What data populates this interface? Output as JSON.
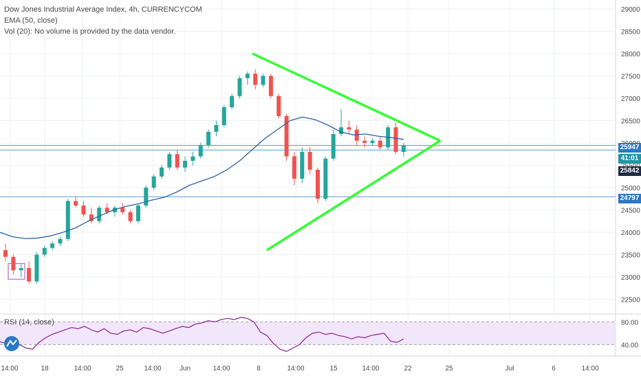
{
  "legend": {
    "symbol": "Dow Jones Industrial Average Index, 4h, CURRENCYCOM",
    "ema": "EMA (50, close)",
    "volume": "Vol (20): No volume is provided by the data vendor.",
    "rsi": "RSI (14, close)"
  },
  "colors": {
    "up": "#26a69a",
    "down": "#ef5350",
    "ema": "#2962a8",
    "trendline": "#33ff33",
    "hline": "#5b9bd5",
    "rsi_line": "#8e1f8e",
    "rsi_band": "#f2e6fb",
    "tag_blue": "#2b78c5",
    "tag_teal": "#2196a3",
    "tag_dark": "#1f2a44"
  },
  "price_tags": {
    "upper": "25947",
    "timer": "41:01",
    "middle": "25842",
    "lower": "24797"
  },
  "chart_data": [
    {
      "type": "candlestick",
      "title": "Dow Jones Industrial Average Index, 4h, CURRENCYCOM",
      "y_ticks": [
        "29000",
        "28500",
        "28000",
        "27500",
        "27000",
        "26500",
        "26000",
        "25500",
        "25000",
        "24500",
        "24000",
        "23500",
        "23000",
        "22500"
      ],
      "x_ticks": [
        "14:00",
        "18",
        "14:00",
        "25",
        "14:00",
        "Jun",
        "14:00",
        "8",
        "14:00",
        "15",
        "14:00",
        "22",
        "25",
        "Jul",
        "6",
        "14:00"
      ],
      "ylim": [
        22200,
        29200
      ],
      "grid": true,
      "series": [
        {
          "name": "EMA (50, close)",
          "type": "line",
          "values": [
            24000,
            23900,
            23860,
            23870,
            23920,
            24000,
            24100,
            24250,
            24380,
            24500,
            24580,
            24640,
            24720,
            24780,
            24900,
            25050,
            25150,
            25250,
            25400,
            25600,
            25850,
            26100,
            26300,
            26500,
            26580,
            26520,
            26400,
            26250,
            26180,
            26200,
            26150,
            26120,
            26080
          ]
        },
        {
          "name": "ohlc",
          "type": "candles",
          "values": [
            [
              23600,
              23750,
              23350,
              23450
            ],
            [
              23450,
              23500,
              23050,
              23150
            ],
            [
              23150,
              23300,
              23000,
              23200
            ],
            [
              23200,
              23350,
              22850,
              22900
            ],
            [
              22900,
              23550,
              22850,
              23500
            ],
            [
              23500,
              23700,
              23450,
              23650
            ],
            [
              23650,
              23800,
              23600,
              23750
            ],
            [
              23750,
              23900,
              23700,
              23850
            ],
            [
              23850,
              24750,
              23800,
              24700
            ],
            [
              24700,
              24800,
              24550,
              24600
            ],
            [
              24600,
              24700,
              24350,
              24400
            ],
            [
              24400,
              24550,
              24200,
              24250
            ],
            [
              24250,
              24600,
              24200,
              24550
            ],
            [
              24550,
              24650,
              24400,
              24450
            ],
            [
              24450,
              24600,
              24350,
              24550
            ],
            [
              24550,
              24650,
              24400,
              24450
            ],
            [
              24450,
              24500,
              24200,
              24250
            ],
            [
              24250,
              24650,
              24200,
              24600
            ],
            [
              24600,
              25050,
              24550,
              25000
            ],
            [
              25000,
              25300,
              24950,
              25250
            ],
            [
              25250,
              25500,
              25200,
              25450
            ],
            [
              25450,
              25800,
              25400,
              25750
            ],
            [
              25750,
              25850,
              25400,
              25450
            ],
            [
              25450,
              25700,
              25350,
              25600
            ],
            [
              25600,
              25800,
              25500,
              25700
            ],
            [
              25700,
              26000,
              25650,
              25950
            ],
            [
              25950,
              26300,
              25900,
              26250
            ],
            [
              26250,
              26500,
              26150,
              26400
            ],
            [
              26400,
              26850,
              26350,
              26800
            ],
            [
              26800,
              27100,
              26750,
              27050
            ],
            [
              27050,
              27500,
              27000,
              27450
            ],
            [
              27450,
              27600,
              27300,
              27550
            ],
            [
              27550,
              27650,
              27200,
              27300
            ],
            [
              27300,
              27550,
              27250,
              27500
            ],
            [
              27500,
              27550,
              27000,
              27050
            ],
            [
              27050,
              27100,
              26550,
              26600
            ],
            [
              26600,
              26650,
              25600,
              25700
            ],
            [
              25700,
              25800,
              25050,
              25200
            ],
            [
              25200,
              25900,
              25100,
              25800
            ],
            [
              25800,
              25900,
              25300,
              25400
            ],
            [
              25400,
              25450,
              24650,
              24750
            ],
            [
              24750,
              25700,
              24700,
              25650
            ],
            [
              25650,
              26300,
              25600,
              26200
            ],
            [
              26200,
              26750,
              26150,
              26350
            ],
            [
              26350,
              26500,
              26200,
              26300
            ],
            [
              26300,
              26400,
              25950,
              26050
            ],
            [
              26050,
              26150,
              25900,
              26000
            ],
            [
              26000,
              26100,
              25950,
              26050
            ],
            [
              26050,
              26150,
              25850,
              25900
            ],
            [
              25900,
              26400,
              25850,
              26350
            ],
            [
              26350,
              26450,
              25750,
              25800
            ],
            [
              25800,
              26000,
              25700,
              25950
            ]
          ]
        }
      ]
    },
    {
      "type": "line",
      "title": "RSI (14, close)",
      "y_ticks": [
        "80.00",
        "40.00"
      ],
      "ylim": [
        20,
        90
      ],
      "series": [
        {
          "name": "RSI (14, close)",
          "values": [
            45,
            42,
            38,
            40,
            34,
            32,
            44,
            52,
            58,
            62,
            66,
            70,
            68,
            72,
            66,
            62,
            68,
            60,
            58,
            64,
            66,
            62,
            70,
            68,
            64,
            60,
            64,
            68,
            72,
            70,
            76,
            78,
            82,
            80,
            84,
            86,
            84,
            88,
            86,
            80,
            62,
            56,
            42,
            32,
            28,
            34,
            40,
            52,
            60,
            62,
            58,
            60,
            56,
            54,
            50,
            54,
            52,
            56,
            58,
            60,
            46,
            44,
            50
          ]
        }
      ]
    }
  ]
}
